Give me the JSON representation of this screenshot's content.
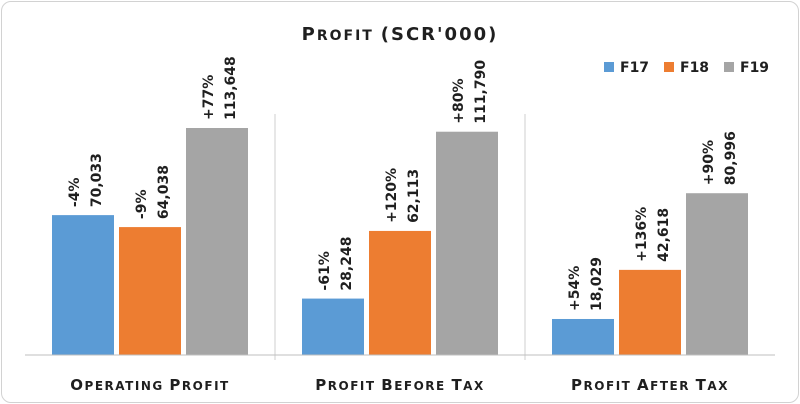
{
  "chart_data": {
    "type": "bar",
    "title": "Profit (SCR'000)",
    "categories": [
      "Operating profit",
      "Profit before tax",
      "Profit after tax"
    ],
    "series": [
      {
        "name": "F17",
        "color": "#5b9bd5",
        "values": [
          70033,
          28248,
          18029
        ],
        "labels": [
          "70,033",
          "28,248",
          "18,029"
        ],
        "changes": [
          "-4%",
          "-61%",
          "+54%"
        ]
      },
      {
        "name": "F18",
        "color": "#ed7d31",
        "values": [
          64038,
          62113,
          42618
        ],
        "labels": [
          "64,038",
          "62,113",
          "42,618"
        ],
        "changes": [
          "-9%",
          "+120%",
          "+136%"
        ]
      },
      {
        "name": "F19",
        "color": "#a5a5a5",
        "values": [
          113648,
          111790,
          80996
        ],
        "labels": [
          "113,648",
          "111,790",
          "80,996"
        ],
        "changes": [
          "+77%",
          "+80%",
          "+90%"
        ]
      }
    ],
    "ylim": [
      0,
      120000
    ],
    "grid": false,
    "legend": "top-right",
    "xlabel": "",
    "ylabel": ""
  }
}
